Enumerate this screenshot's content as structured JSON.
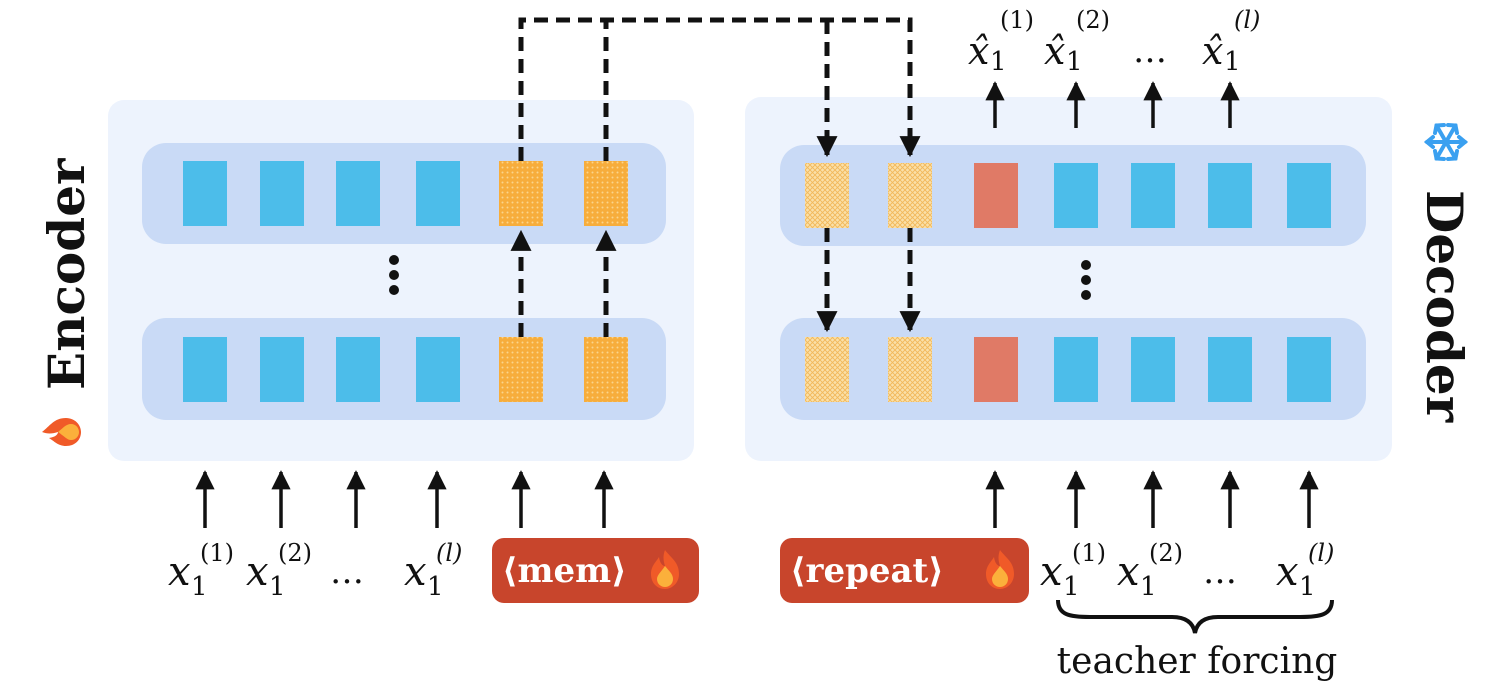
{
  "encoder": {
    "title": "Encoder",
    "title_icon": "fire-icon",
    "layers": 2,
    "normal_tokens": 4,
    "memory_tokens": 2,
    "vertical_ellipsis": "⋮"
  },
  "decoder": {
    "title": "Decoder",
    "title_icon": "snowflake-icon",
    "layers": 2,
    "memory_tokens": 2,
    "special_tokens": 1,
    "normal_tokens": 4,
    "vertical_ellipsis": "⋮"
  },
  "encoder_inputs": [
    {
      "base": "x",
      "sub": "1",
      "sup": "(1)"
    },
    {
      "base": "x",
      "sub": "1",
      "sup": "(2)"
    },
    {
      "base": "…",
      "sub": "",
      "sup": ""
    },
    {
      "base": "x",
      "sub": "1",
      "sup": "(l)"
    }
  ],
  "decoder_inputs": [
    {
      "base": "x",
      "sub": "1",
      "sup": "(1)"
    },
    {
      "base": "x",
      "sub": "1",
      "sup": "(2)"
    },
    {
      "base": "…",
      "sub": "",
      "sup": ""
    },
    {
      "base": "x",
      "sub": "1",
      "sup": "(l)"
    }
  ],
  "decoder_outputs": [
    {
      "base": "x̂",
      "sub": "1",
      "sup": "(1)"
    },
    {
      "base": "x̂",
      "sub": "1",
      "sup": "(2)"
    },
    {
      "base": "…",
      "sub": "",
      "sup": ""
    },
    {
      "base": "x̂",
      "sub": "1",
      "sup": "(l)"
    }
  ],
  "mem_chip": {
    "label": "⟨mem⟩",
    "icon": "fire-icon"
  },
  "repeat_chip": {
    "label": "⟨repeat⟩",
    "icon": "fire-icon"
  },
  "teacher_forcing_label": "teacher forcing",
  "colors": {
    "panel_bg": "#edf3fd",
    "layer_bg": "#c9daf6",
    "token_blue": "#4cbdea",
    "token_orange": "#f7ad3c",
    "token_red": "#e07a66",
    "chip_red": "#c8452c",
    "snowflake_blue": "#3aa0f0"
  }
}
